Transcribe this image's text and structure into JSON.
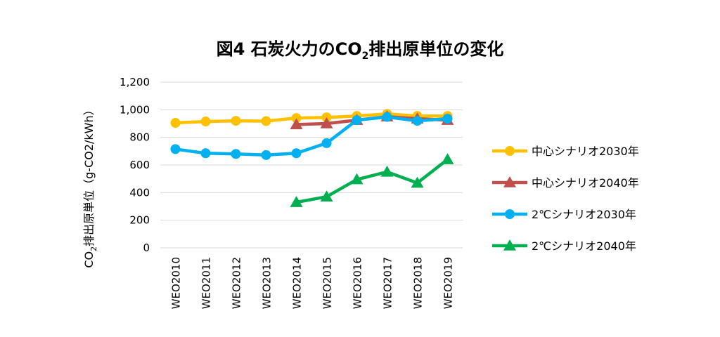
{
  "chart_data": {
    "type": "line",
    "title": {
      "prefix": "図4 石炭火力のCO",
      "sub": "2",
      "suffix": "排出原単位の変化"
    },
    "ylabel": {
      "prefix": "CO",
      "sub": "2",
      "suffix": "排出原単位（g-CO2/kWh）"
    },
    "xlabel": "",
    "categories": [
      "WEO2010",
      "WEO2011",
      "WEO2012",
      "WEO2013",
      "WEO2014",
      "WEO2015",
      "WEO2016",
      "WEO2017",
      "WEO2018",
      "WEO2019"
    ],
    "ylim": [
      0,
      1200
    ],
    "yticks": [
      0,
      200,
      400,
      600,
      800,
      1000,
      1200
    ],
    "ytick_labels": [
      "0",
      "200",
      "400",
      "600",
      "800",
      "1,000",
      "1,200"
    ],
    "grid": true,
    "legend_position": "right",
    "series": [
      {
        "name": "中心シナリオ2030年",
        "color": "#FFC000",
        "marker": "circle",
        "values": [
          905,
          915,
          920,
          918,
          940,
          945,
          955,
          970,
          955,
          955
        ]
      },
      {
        "name": "中心シナリオ2040年",
        "color": "#C0504D",
        "marker": "triangle",
        "values": [
          null,
          null,
          null,
          null,
          893,
          900,
          925,
          950,
          935,
          925
        ]
      },
      {
        "name": "2℃シナリオ2030年",
        "color": "#00B0F0",
        "marker": "circle",
        "values": [
          715,
          685,
          680,
          672,
          685,
          758,
          925,
          948,
          920,
          935
        ]
      },
      {
        "name": "2℃シナリオ2040年",
        "color": "#00B050",
        "marker": "triangle",
        "values": [
          null,
          null,
          null,
          null,
          330,
          370,
          495,
          550,
          470,
          640
        ]
      }
    ]
  }
}
